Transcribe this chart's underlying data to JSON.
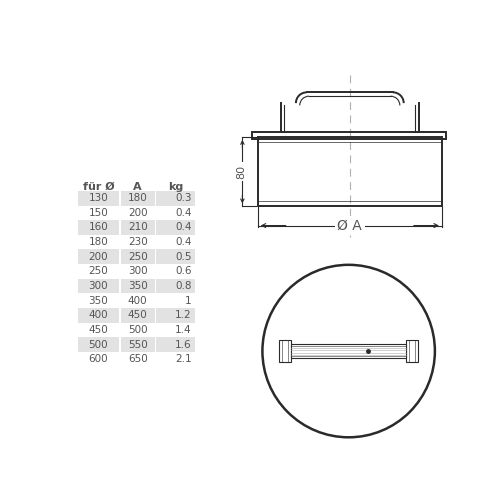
{
  "table_headers": [
    "für Ø",
    "A",
    "kg"
  ],
  "table_data": [
    [
      130,
      180,
      0.3
    ],
    [
      150,
      200,
      0.4
    ],
    [
      160,
      210,
      0.4
    ],
    [
      180,
      230,
      0.4
    ],
    [
      200,
      250,
      0.5
    ],
    [
      250,
      300,
      0.6
    ],
    [
      300,
      350,
      0.8
    ],
    [
      350,
      400,
      1
    ],
    [
      400,
      450,
      1.2
    ],
    [
      450,
      500,
      1.4
    ],
    [
      500,
      550,
      1.6
    ],
    [
      600,
      650,
      2.1
    ]
  ],
  "shaded_rows": [
    0,
    2,
    4,
    6,
    8,
    10
  ],
  "row_bg_shaded": "#e2e2e2",
  "row_bg_white": "#ffffff",
  "text_color": "#555555",
  "header_color": "#555555",
  "line_color": "#2a2a2a",
  "dashed_color": "#b0b0b0",
  "dim_label_80": "80",
  "dim_label_phiA": "Ø A",
  "bg_color": "#ffffff"
}
